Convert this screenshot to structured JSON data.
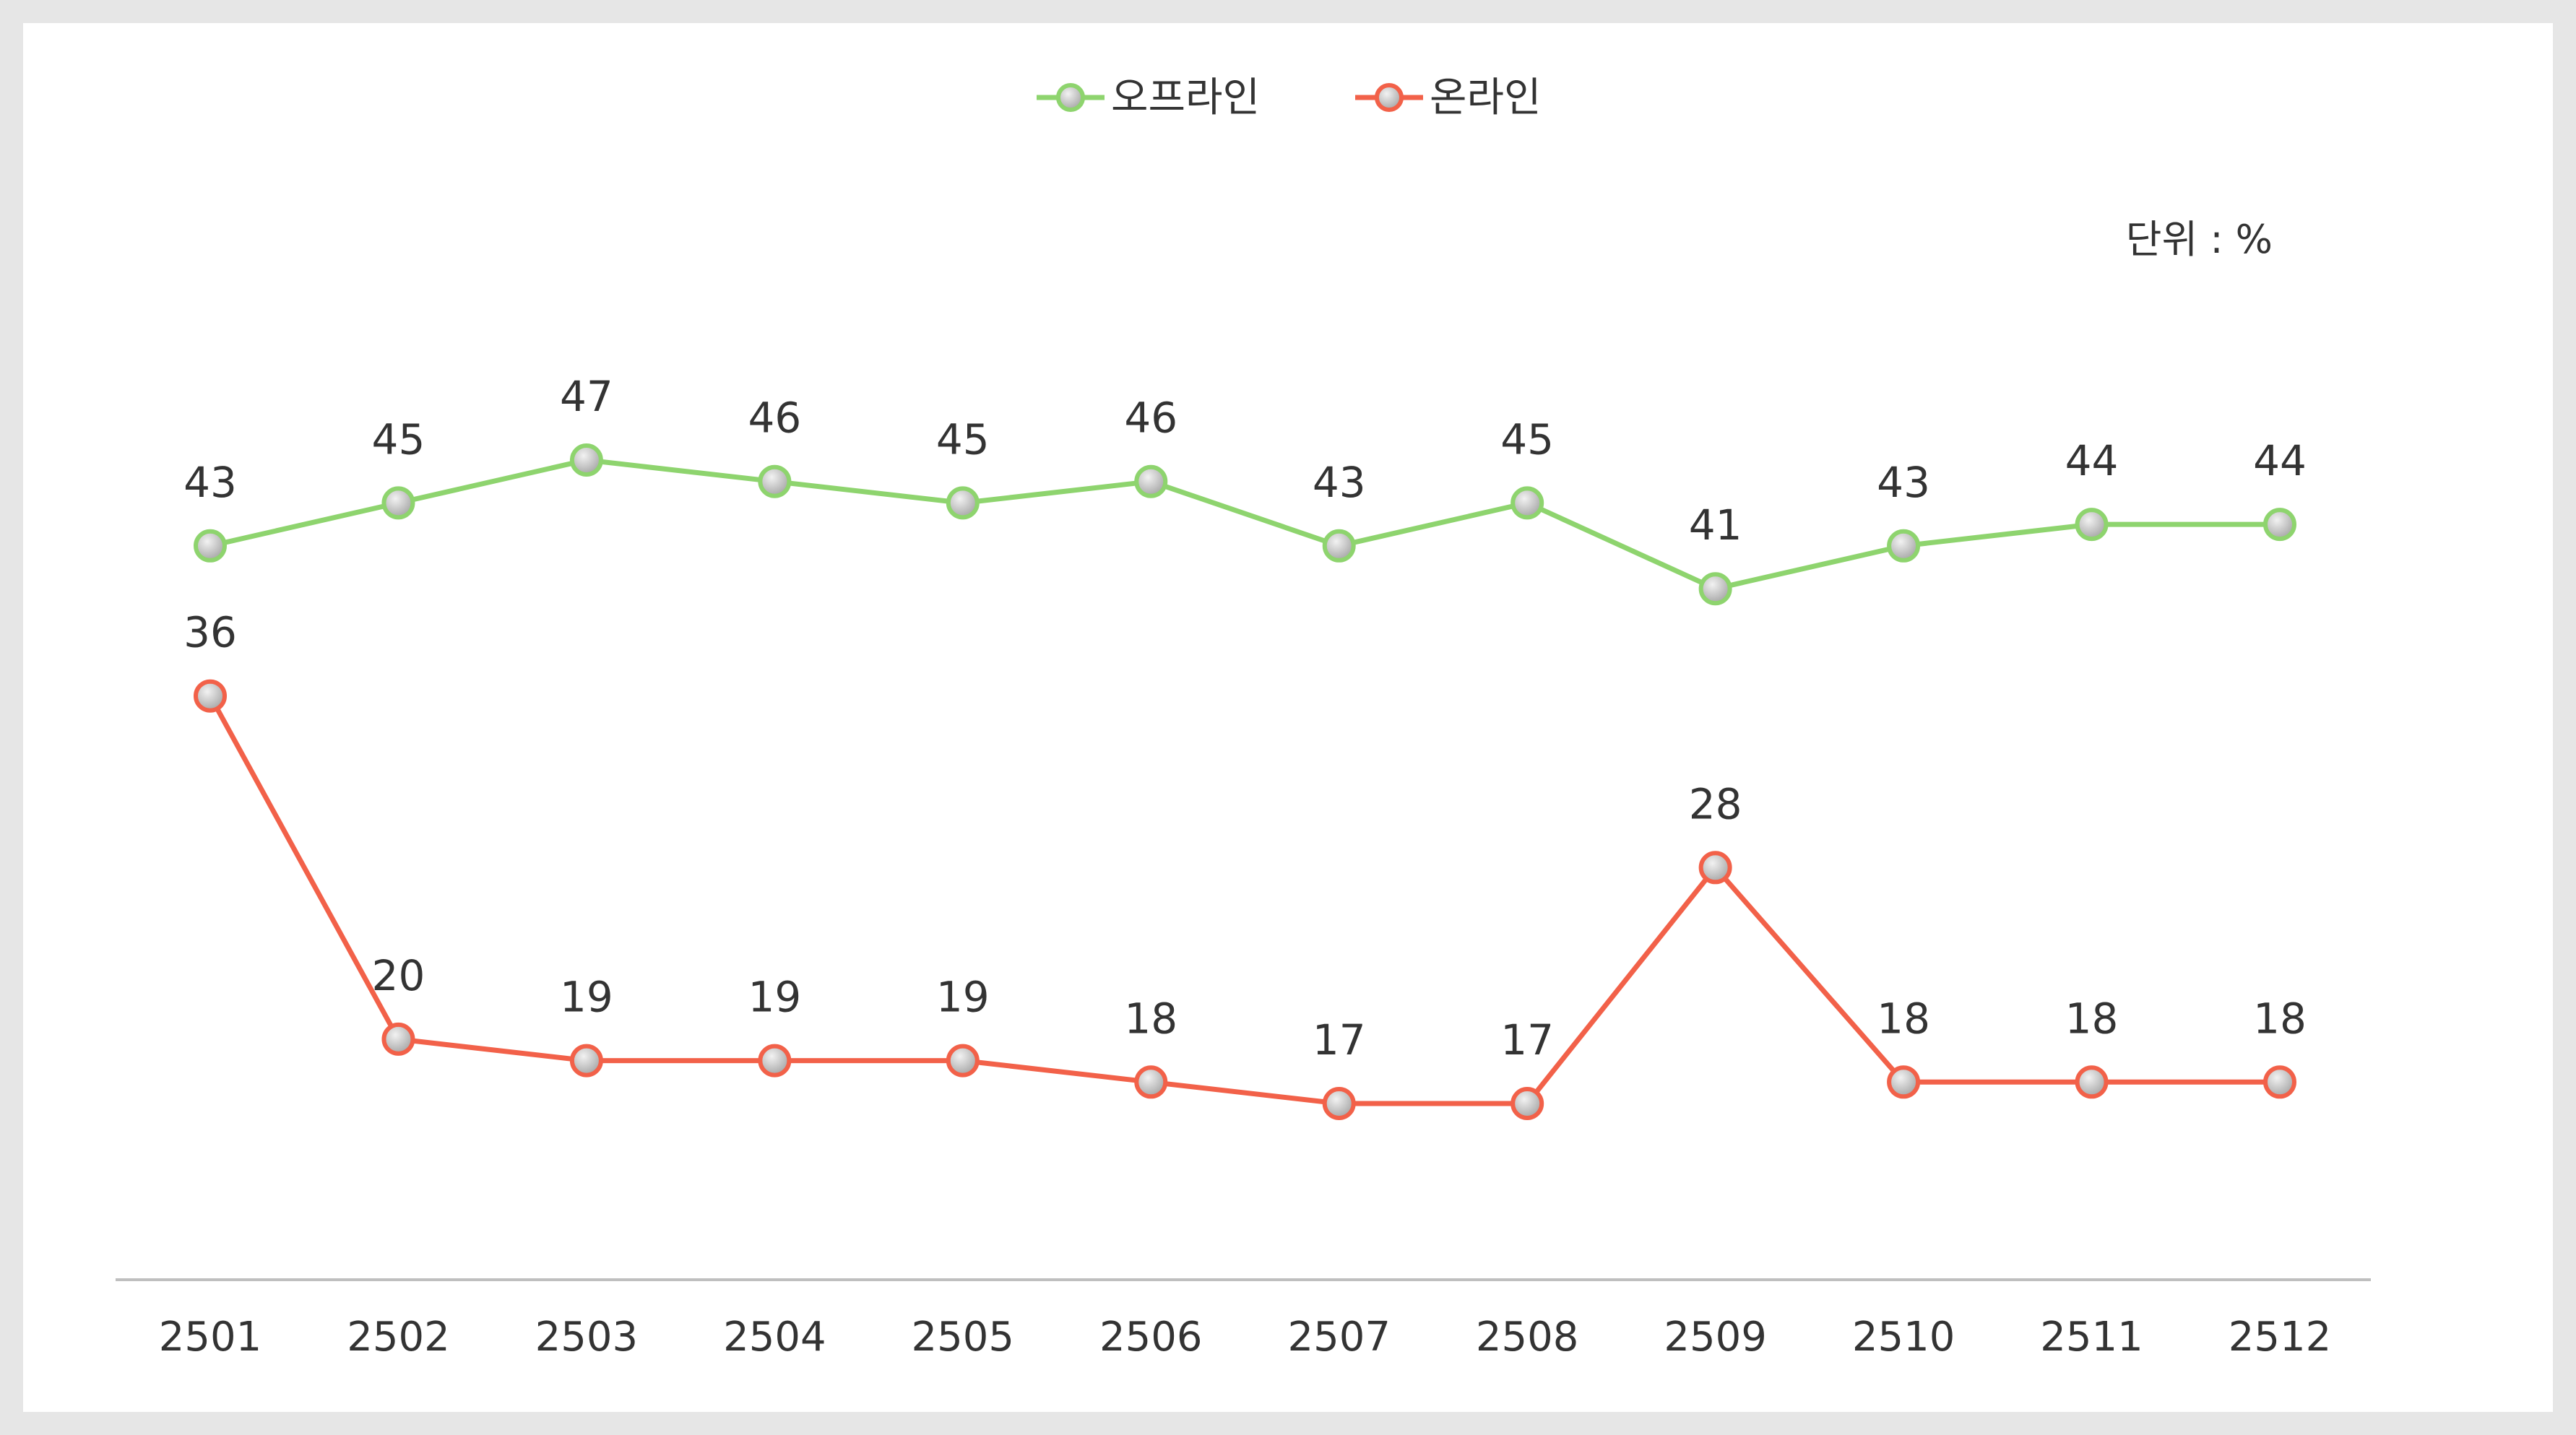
{
  "chart_data": {
    "type": "line",
    "unit_label": "단위 : %",
    "categories": [
      "2501",
      "2502",
      "2503",
      "2504",
      "2505",
      "2506",
      "2507",
      "2508",
      "2509",
      "2510",
      "2511",
      "2512"
    ],
    "series": [
      {
        "name": "오프라인",
        "color": "#8ed46e",
        "values": [
          43,
          45,
          47,
          46,
          45,
          46,
          43,
          45,
          41,
          43,
          44,
          44
        ]
      },
      {
        "name": "온라인",
        "color": "#f26149",
        "values": [
          36,
          20,
          19,
          19,
          19,
          18,
          17,
          17,
          28,
          18,
          18,
          18
        ]
      }
    ],
    "legend_position": "top-center",
    "grid": false,
    "marker_fill": "#c8c8c8"
  }
}
